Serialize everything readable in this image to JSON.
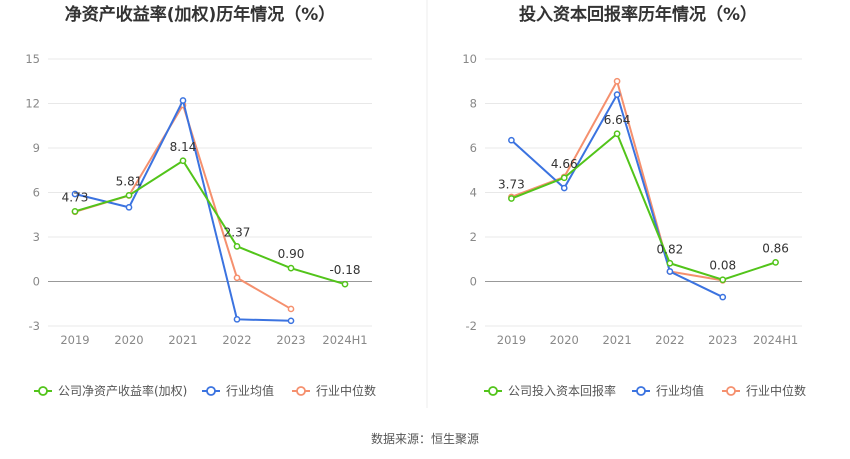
{
  "chart_data": [
    {
      "type": "line",
      "title": "净资产收益率(加权)历年情况（%）",
      "categories": [
        "2019",
        "2020",
        "2021",
        "2022",
        "2023",
        "2024H1"
      ],
      "ylim": [
        -3,
        15
      ],
      "yticks": [
        "15",
        "12",
        "9",
        "6",
        "3",
        "0",
        "-3"
      ],
      "series": [
        {
          "name": "公司净资产收益率(加权)",
          "color": "#52c41a",
          "values": [
            4.73,
            5.81,
            8.14,
            2.37,
            0.9,
            -0.18
          ],
          "labels": [
            "4.73",
            "5.81",
            "8.14",
            "2.37",
            "0.90",
            "-0.18"
          ]
        },
        {
          "name": "行业均值",
          "color": "#3b73e0",
          "values": [
            5.9,
            5.0,
            12.2,
            -2.55,
            -2.65,
            null
          ]
        },
        {
          "name": "行业中位数",
          "color": "#f5906e",
          "values": [
            4.7,
            5.8,
            11.9,
            0.25,
            -1.85,
            null
          ]
        }
      ]
    },
    {
      "type": "line",
      "title": "投入资本回报率历年情况（%）",
      "categories": [
        "2019",
        "2020",
        "2021",
        "2022",
        "2023",
        "2024H1"
      ],
      "ylim": [
        -2,
        10
      ],
      "yticks": [
        "10",
        "8",
        "6",
        "4",
        "2",
        "0",
        "-2"
      ],
      "series": [
        {
          "name": "公司投入资本回报率",
          "color": "#52c41a",
          "values": [
            3.73,
            4.66,
            6.64,
            0.82,
            0.08,
            0.86
          ],
          "labels": [
            "3.73",
            "4.66",
            "6.64",
            "0.82",
            "0.08",
            "0.86"
          ]
        },
        {
          "name": "行业均值",
          "color": "#3b73e0",
          "values": [
            6.35,
            4.2,
            8.4,
            0.45,
            -0.7,
            null
          ]
        },
        {
          "name": "行业中位数",
          "color": "#f5906e",
          "values": [
            3.8,
            4.7,
            9.0,
            0.45,
            0.05,
            null
          ]
        }
      ]
    }
  ],
  "footer": {
    "source": "数据来源：恒生聚源"
  }
}
